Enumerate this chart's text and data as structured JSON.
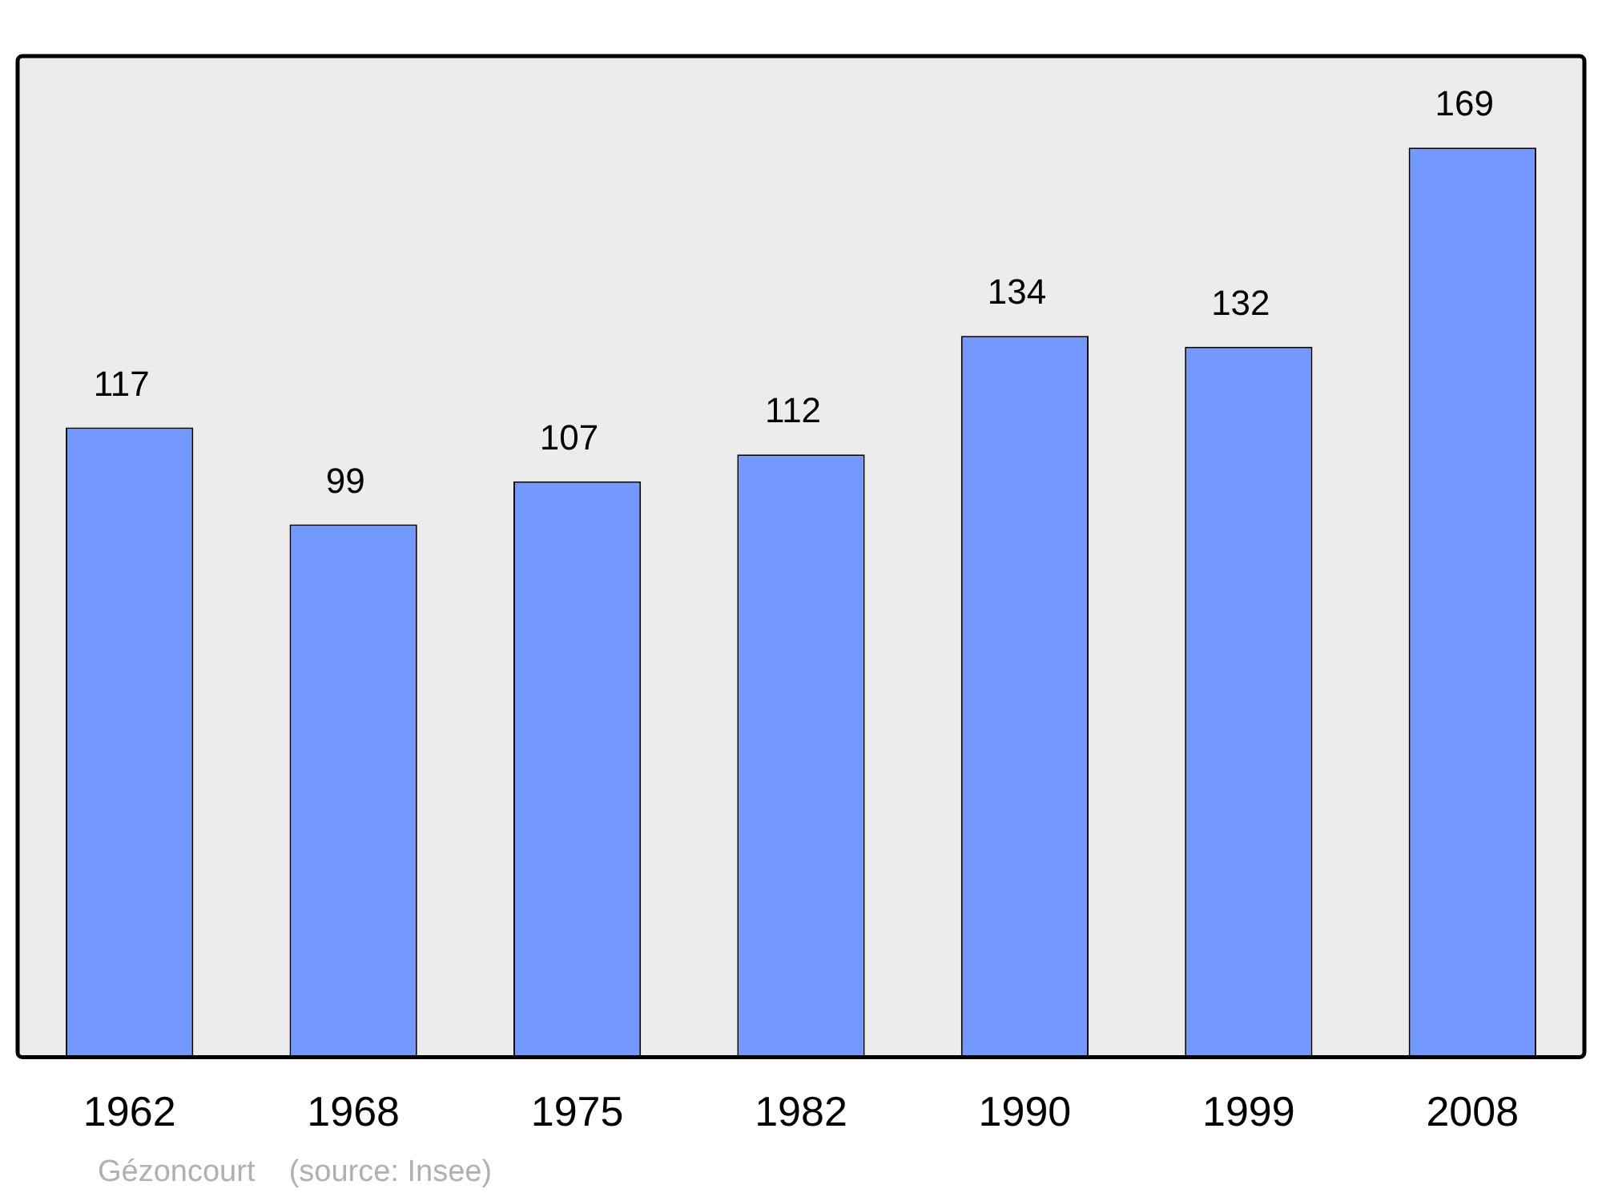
{
  "chart_data": {
    "type": "bar",
    "categories": [
      "1962",
      "1968",
      "1975",
      "1982",
      "1990",
      "1999",
      "2008"
    ],
    "values": [
      117,
      99,
      107,
      112,
      134,
      132,
      169
    ],
    "color": "#7399ff",
    "ylim": [
      0,
      186
    ],
    "data_labels": true,
    "grid": false,
    "legend": false,
    "tick_labels": "x",
    "annotations": [
      "Gézoncourt    (source: Insee)"
    ]
  }
}
